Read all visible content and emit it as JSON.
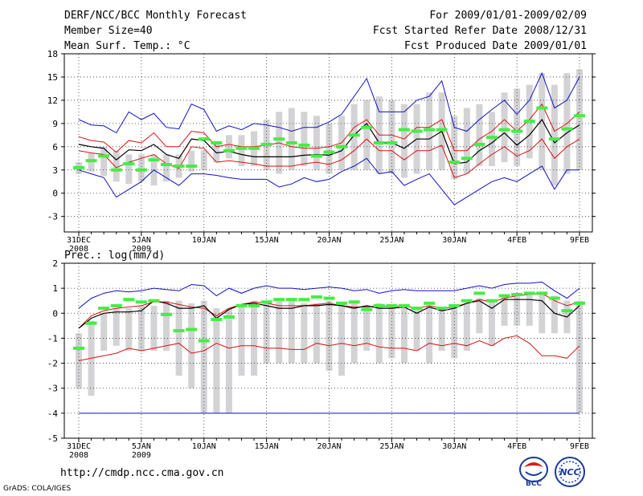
{
  "header": {
    "title": "DERF/NCC/BCC Monthly Forecast",
    "member": "Member Size=40",
    "variable": "Mean Surf. Temp.: °C",
    "period": "For 2009/01/01-2009/02/09",
    "refer": "Fcst Started Refer Date 2008/12/31",
    "produced": "Fcst Produced Date 2009/01/01"
  },
  "footer": {
    "url": "http://cmdp.ncc.cma.gov.cn",
    "grads": "GrADS: COLA/IGES",
    "logo_left": "BCC",
    "logo_right": "NCC"
  },
  "colors": {
    "box": "#d3d3d6",
    "obs": "#44ee44",
    "ens_max_min": "#1010c8",
    "ens_pct": "#dd1010",
    "ens_mean": "#000000",
    "grid": "#333333"
  },
  "chart_data": [
    {
      "type": "line",
      "title": "Mean Surf. Temp.: °C",
      "xlabel": "",
      "ylabel": "°C",
      "ylim": [
        -5,
        18
      ],
      "yticks": [
        -3,
        0,
        3,
        6,
        9,
        12,
        15,
        18
      ],
      "days": 40,
      "x_ticks": [
        {
          "day": 0,
          "label": "31DEC",
          "sub": "2008"
        },
        {
          "day": 5,
          "label": "5JAN",
          "sub": "2009"
        },
        {
          "day": 10,
          "label": "10JAN",
          "sub": ""
        },
        {
          "day": 15,
          "label": "15JAN",
          "sub": ""
        },
        {
          "day": 20,
          "label": "20JAN",
          "sub": ""
        },
        {
          "day": 25,
          "label": "25JAN",
          "sub": ""
        },
        {
          "day": 30,
          "label": "30JAN",
          "sub": ""
        },
        {
          "day": 35,
          "label": "4FEB",
          "sub": ""
        },
        {
          "day": 40,
          "label": "9FEB",
          "sub": ""
        }
      ],
      "box_low": [
        2.5,
        2.8,
        2.2,
        1.5,
        1.2,
        1.5,
        1.0,
        1.5,
        2.0,
        2.8,
        3.0,
        4.0,
        4.5,
        3.5,
        3.5,
        3.0,
        2.5,
        3.0,
        3.5,
        3.0,
        2.5,
        3.0,
        3.0,
        3.0,
        2.5,
        2.5,
        2.0,
        2.5,
        3.0,
        3.0,
        1.8,
        2.5,
        3.5,
        3.5,
        4.0,
        3.5,
        4.5,
        3.0,
        1.0,
        2.5,
        3.0
      ],
      "box_high": [
        4.0,
        5.2,
        6.0,
        5.5,
        5.0,
        5.0,
        5.0,
        5.0,
        5.0,
        5.5,
        5.5,
        6.5,
        7.5,
        7.5,
        8.0,
        9.5,
        10.5,
        11.0,
        10.5,
        10.0,
        9.0,
        10.0,
        11.5,
        12.0,
        12.5,
        12.0,
        11.5,
        11.5,
        13.0,
        13.0,
        10.0,
        11.0,
        11.5,
        10.5,
        13.0,
        13.5,
        14.0,
        15.5,
        14.0,
        15.5,
        16.0
      ],
      "obs": [
        3.3,
        4.2,
        4.8,
        3.0,
        3.8,
        3.0,
        4.3,
        3.7,
        3.5,
        3.5,
        7.0,
        6.5,
        5.5,
        5.8,
        5.8,
        6.3,
        7.0,
        6.5,
        6.2,
        4.8,
        5.3,
        6.0,
        7.5,
        8.5,
        6.5,
        6.5,
        8.2,
        8.0,
        8.2,
        8.2,
        4.0,
        4.5,
        6.3,
        7.2,
        8.2,
        8.0,
        9.3,
        11.0,
        7.0,
        8.3,
        10.0
      ],
      "series": [
        {
          "name": "ensemble maximum",
          "color_key": "ens_max_min",
          "values": [
            9.5,
            8.8,
            8.7,
            7.8,
            10.5,
            9.5,
            10.3,
            8.5,
            8.3,
            11.5,
            10.8,
            8.0,
            8.7,
            8.2,
            9.0,
            8.8,
            8.5,
            8.0,
            8.5,
            8.5,
            9.2,
            10.2,
            12.5,
            14.8,
            10.5,
            10.5,
            10.5,
            12.0,
            12.5,
            14.5,
            8.5,
            8.0,
            9.5,
            10.8,
            12.0,
            10.2,
            12.0,
            15.5,
            11.0,
            12.0,
            15.0
          ]
        },
        {
          "name": "ensemble upper percentile",
          "color_key": "ens_pct",
          "values": [
            7.3,
            6.8,
            6.6,
            5.3,
            6.8,
            6.5,
            7.8,
            6.0,
            6.0,
            8.0,
            7.8,
            6.0,
            6.3,
            6.0,
            6.0,
            6.2,
            6.5,
            6.0,
            5.8,
            5.8,
            6.0,
            6.5,
            8.5,
            9.5,
            7.5,
            7.5,
            7.0,
            8.5,
            8.5,
            9.5,
            5.5,
            5.5,
            7.0,
            8.0,
            9.5,
            8.0,
            9.5,
            11.5,
            8.0,
            9.0,
            10.5
          ]
        },
        {
          "name": "ensemble mean",
          "color_key": "ens_mean",
          "values": [
            6.3,
            6.0,
            5.8,
            4.3,
            5.6,
            5.5,
            6.3,
            5.0,
            4.5,
            7.0,
            6.8,
            5.2,
            5.4,
            5.0,
            4.7,
            4.7,
            4.7,
            4.7,
            4.9,
            5.0,
            4.9,
            5.5,
            7.5,
            9.0,
            6.5,
            6.5,
            5.8,
            7.0,
            7.0,
            8.0,
            3.8,
            4.0,
            5.5,
            6.5,
            7.8,
            6.2,
            7.5,
            9.5,
            6.5,
            7.8,
            8.8
          ]
        },
        {
          "name": "ensemble lower percentile",
          "color_key": "ens_pct",
          "values": [
            5.5,
            5.2,
            5.0,
            3.3,
            4.0,
            4.5,
            5.0,
            3.8,
            3.2,
            6.0,
            5.8,
            4.0,
            4.2,
            4.0,
            3.8,
            3.5,
            3.5,
            3.5,
            3.8,
            4.0,
            3.7,
            4.3,
            5.5,
            7.0,
            5.5,
            5.5,
            4.3,
            5.5,
            5.5,
            6.2,
            2.0,
            2.5,
            3.8,
            5.0,
            6.0,
            4.8,
            5.5,
            7.0,
            4.5,
            6.0,
            7.0
          ]
        },
        {
          "name": "ensemble minimum",
          "color_key": "ens_max_min",
          "values": [
            3.0,
            2.5,
            2.0,
            -0.5,
            0.5,
            1.5,
            3.0,
            2.0,
            1.0,
            2.5,
            2.5,
            2.3,
            2.0,
            1.8,
            1.8,
            1.8,
            0.8,
            1.2,
            2.0,
            1.5,
            1.8,
            2.8,
            3.5,
            4.5,
            2.5,
            2.8,
            1.0,
            1.8,
            2.5,
            0.5,
            -1.5,
            -0.5,
            0.5,
            1.5,
            2.0,
            1.5,
            2.5,
            3.5,
            0.5,
            3.0,
            3.0
          ]
        }
      ]
    },
    {
      "type": "line",
      "title": "Prec.: log(mm/d)",
      "xlabel": "",
      "ylabel": "log(mm/d)",
      "ylim": [
        -5,
        2
      ],
      "yticks": [
        -5,
        -4,
        -3,
        -2,
        -1,
        0,
        1,
        2
      ],
      "days": 40,
      "floor_value": -4,
      "x_ticks": [
        {
          "day": 0,
          "label": "31DEC",
          "sub": "2008"
        },
        {
          "day": 5,
          "label": "5JAN",
          "sub": "2009"
        },
        {
          "day": 10,
          "label": "10JAN",
          "sub": ""
        },
        {
          "day": 15,
          "label": "15JAN",
          "sub": ""
        },
        {
          "day": 20,
          "label": "20JAN",
          "sub": ""
        },
        {
          "day": 25,
          "label": "25JAN",
          "sub": ""
        },
        {
          "day": 30,
          "label": "30JAN",
          "sub": ""
        },
        {
          "day": 35,
          "label": "4FEB",
          "sub": ""
        },
        {
          "day": 40,
          "label": "9FEB",
          "sub": ""
        }
      ],
      "box_low": [
        -3.0,
        -3.3,
        -1.5,
        -1.3,
        -1.5,
        -1.5,
        -1.5,
        -1.5,
        -2.5,
        -3.0,
        -4.0,
        -4.0,
        -4.0,
        -2.5,
        -2.5,
        -2.0,
        -2.0,
        -2.0,
        -2.0,
        -2.0,
        -2.3,
        -2.5,
        -2.0,
        -1.5,
        -2.0,
        -1.8,
        -2.0,
        -1.5,
        -2.0,
        -1.5,
        -1.8,
        -1.5,
        -0.8,
        -1.3,
        -0.5,
        -0.5,
        -0.5,
        -0.8,
        -0.8,
        -0.8,
        -4.0
      ],
      "box_high": [
        -0.8,
        -0.3,
        0.0,
        0.2,
        0.2,
        0.3,
        0.3,
        0.5,
        0.5,
        0.4,
        0.5,
        0.2,
        0.2,
        0.3,
        0.5,
        0.4,
        0.5,
        0.5,
        0.4,
        0.4,
        0.5,
        0.4,
        0.4,
        0.3,
        0.4,
        0.3,
        0.3,
        0.2,
        0.3,
        0.2,
        0.3,
        0.4,
        0.6,
        0.5,
        0.7,
        0.8,
        0.8,
        0.8,
        0.7,
        0.5,
        0.5
      ],
      "obs": [
        -1.4,
        -0.4,
        0.2,
        0.3,
        0.55,
        0.45,
        0.5,
        -0.05,
        -0.7,
        -0.65,
        -1.1,
        -0.25,
        -0.15,
        0.3,
        0.3,
        0.45,
        0.55,
        0.55,
        0.55,
        0.65,
        0.6,
        0.4,
        0.45,
        0.15,
        0.3,
        0.3,
        0.3,
        0.2,
        0.4,
        0.2,
        0.3,
        0.5,
        0.8,
        0.5,
        0.7,
        0.75,
        0.8,
        0.8,
        0.6,
        0.1,
        0.4
      ],
      "series": [
        {
          "name": "ensemble maximum",
          "color_key": "ens_max_min",
          "values": [
            0.2,
            0.6,
            0.8,
            0.9,
            0.85,
            0.9,
            1.0,
            0.95,
            0.9,
            1.15,
            1.1,
            0.7,
            1.0,
            0.8,
            1.0,
            1.1,
            1.0,
            1.0,
            0.95,
            1.0,
            1.05,
            1.0,
            0.9,
            0.95,
            0.8,
            0.9,
            0.95,
            0.9,
            0.9,
            0.9,
            0.9,
            1.0,
            1.1,
            1.0,
            1.15,
            1.2,
            1.2,
            1.25,
            0.9,
            0.6,
            1.0
          ]
        },
        {
          "name": "ensemble upper percentile",
          "color_key": "ens_pct",
          "values": [
            -0.6,
            -0.1,
            0.1,
            0.2,
            0.25,
            0.3,
            0.45,
            0.45,
            0.35,
            0.25,
            0.2,
            -0.1,
            0.2,
            0.35,
            0.45,
            0.4,
            0.3,
            0.3,
            0.3,
            0.35,
            0.4,
            0.3,
            0.25,
            0.25,
            0.3,
            0.25,
            0.3,
            0.2,
            0.3,
            0.2,
            0.25,
            0.4,
            0.55,
            0.45,
            0.6,
            0.7,
            0.75,
            0.8,
            0.5,
            0.3,
            0.45
          ]
        },
        {
          "name": "ensemble mean",
          "color_key": "ens_mean",
          "values": [
            -0.6,
            -0.2,
            0.0,
            0.05,
            0.05,
            0.1,
            0.5,
            0.4,
            0.2,
            0.2,
            0.3,
            -0.2,
            0.15,
            0.35,
            0.4,
            0.3,
            0.2,
            0.2,
            0.3,
            0.3,
            0.35,
            0.3,
            0.2,
            0.3,
            0.2,
            0.2,
            0.25,
            0.0,
            0.25,
            0.1,
            0.2,
            0.4,
            0.5,
            0.2,
            0.55,
            0.55,
            0.55,
            0.5,
            0.0,
            -0.15,
            0.3
          ]
        },
        {
          "name": "ensemble lower percentile",
          "color_key": "ens_pct",
          "values": [
            -1.9,
            -1.8,
            -1.7,
            -1.6,
            -1.4,
            -1.5,
            -1.4,
            -1.3,
            -1.2,
            -1.6,
            -1.5,
            -1.2,
            -1.4,
            -1.3,
            -1.3,
            -1.4,
            -1.4,
            -1.45,
            -1.45,
            -1.2,
            -1.3,
            -1.2,
            -1.3,
            -1.2,
            -1.35,
            -1.4,
            -1.4,
            -1.5,
            -1.2,
            -1.3,
            -1.2,
            -1.3,
            -1.1,
            -1.3,
            -1.0,
            -0.9,
            -1.2,
            -1.7,
            -1.7,
            -1.8,
            -1.3
          ]
        },
        {
          "name": "ensemble minimum",
          "color_key": "ens_max_min",
          "values": [
            -4,
            -4,
            -4,
            -4,
            -4,
            -4,
            -4,
            -4,
            -4,
            -4,
            -4,
            -4,
            -4,
            -4,
            -4,
            -4,
            -4,
            -4,
            -4,
            -4,
            -4,
            -4,
            -4,
            -4,
            -4,
            -4,
            -4,
            -4,
            -4,
            -4,
            -4,
            -4,
            -4,
            -4,
            -4,
            -4,
            -4,
            -4,
            -4,
            -4,
            -4
          ]
        }
      ]
    }
  ]
}
